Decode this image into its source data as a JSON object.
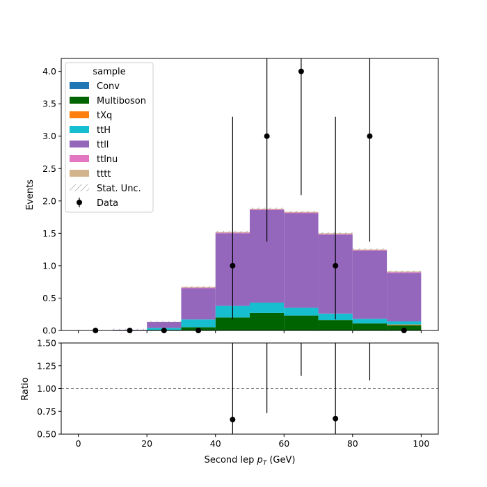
{
  "chart_data": {
    "type": "bar",
    "stacked": true,
    "bin_edges": [
      0,
      10,
      20,
      30,
      40,
      50,
      60,
      70,
      80,
      90,
      100
    ],
    "xlim": [
      -5,
      105
    ],
    "xticks": [
      0,
      20,
      40,
      60,
      80,
      100
    ],
    "xlabel": "Second lep",
    "xlabel_symbol": "p",
    "xlabel_sub": "T",
    "xlabel_unit": "(GeV)",
    "top": {
      "ylabel": "Events",
      "ylim": [
        0,
        4.2
      ],
      "yticks": [
        "0.0",
        "0.5",
        "1.0",
        "1.5",
        "2.0",
        "2.5",
        "3.0",
        "3.5",
        "4.0"
      ],
      "series": [
        {
          "name": "Conv",
          "color": "#1f77b4",
          "values": [
            0,
            0,
            0,
            0,
            0,
            0,
            0,
            0,
            0,
            0
          ]
        },
        {
          "name": "Multiboson",
          "color": "#006400",
          "values": [
            0,
            0,
            0.01,
            0.05,
            0.2,
            0.27,
            0.23,
            0.16,
            0.11,
            0.08
          ]
        },
        {
          "name": "tXq",
          "color": "#ff7f0e",
          "values": [
            0,
            0,
            0,
            0,
            0,
            0,
            0,
            0,
            0,
            0.01
          ]
        },
        {
          "name": "ttH",
          "color": "#17becf",
          "values": [
            0,
            0,
            0.03,
            0.12,
            0.18,
            0.16,
            0.12,
            0.1,
            0.07,
            0.05
          ]
        },
        {
          "name": "ttll",
          "color": "#9467bd",
          "values": [
            0,
            0.01,
            0.09,
            0.48,
            1.12,
            1.43,
            1.46,
            1.22,
            1.05,
            0.75
          ]
        },
        {
          "name": "ttlnu",
          "color": "#e377c2",
          "values": [
            0,
            0,
            0,
            0.01,
            0.01,
            0.01,
            0.01,
            0.01,
            0.01,
            0.01
          ]
        },
        {
          "name": "tttt",
          "color": "#d2b48c",
          "values": [
            0,
            0,
            0,
            0.01,
            0.01,
            0.01,
            0.01,
            0.01,
            0.01,
            0.01
          ]
        }
      ],
      "stat_unc_label": "Stat. Unc.",
      "data": {
        "name": "Data",
        "x": [
          5,
          15,
          25,
          35,
          45,
          55,
          65,
          75,
          85,
          95
        ],
        "y": [
          0,
          0,
          0,
          0,
          1,
          3,
          4,
          1,
          3,
          0
        ],
        "err_low": [
          0,
          0,
          0,
          0,
          0.83,
          1.63,
          1.91,
          0.83,
          1.63,
          0
        ],
        "err_high": [
          0,
          0,
          0,
          0,
          2.3,
          2.92,
          3.16,
          2.3,
          2.92,
          0
        ]
      },
      "legend_title": "sample",
      "legend_loc": "upper-left"
    },
    "ratio": {
      "ylabel": "Ratio",
      "ylim": [
        0.5,
        1.5
      ],
      "yticks": [
        "0.50",
        "0.75",
        "1.00",
        "1.25",
        "1.50"
      ],
      "reference_line": 1.0,
      "points": {
        "x": [
          45,
          75
        ],
        "y": [
          0.66,
          0.67
        ]
      },
      "error_bars": [
        {
          "x": 45,
          "low": 0.1,
          "high": 2.1
        },
        {
          "x": 55,
          "low": 0.73,
          "high": 2.2
        },
        {
          "x": 65,
          "low": 1.14,
          "high": 2.2
        },
        {
          "x": 75,
          "low": 0.1,
          "high": 2.2
        },
        {
          "x": 85,
          "low": 1.09,
          "high": 2.2
        }
      ]
    }
  }
}
